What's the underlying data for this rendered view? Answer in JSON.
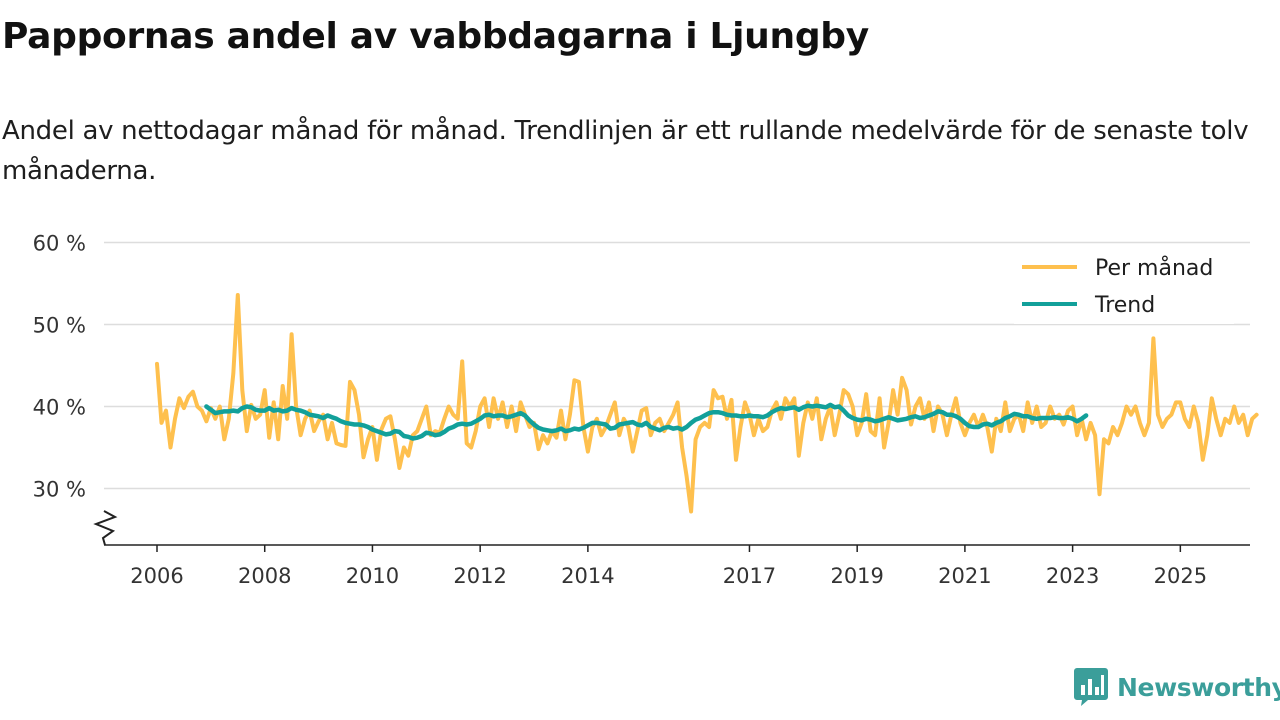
{
  "title": "Pappornas andel av vabbdagarna i Ljungby",
  "subtitle": "Andel av nettodagar månad för månad. Trendlinjen är ett rullande medelvärde för de senaste tolv månaderna.",
  "brand": {
    "name": "Newsworthy",
    "icon": "newsworthy-chart-icon"
  },
  "colors": {
    "monthly": "#fec04e",
    "trend": "#12a09a",
    "grid": "#dddddd",
    "axis": "#222222"
  },
  "chart_data": {
    "type": "line",
    "title": "Pappornas andel av vabbdagarna i Ljungby",
    "xlabel": "",
    "ylabel": "",
    "ylim": [
      23,
      60
    ],
    "y_ticks": [
      30,
      40,
      50,
      60
    ],
    "y_tick_labels": [
      "30 %",
      "40 %",
      "50 %",
      "60 %"
    ],
    "y_axis_broken": true,
    "x_ticks": [
      2006,
      2008,
      2010,
      2012,
      2014,
      2017,
      2019,
      2021,
      2023,
      2025
    ],
    "x_tick_labels": [
      "2006",
      "2008",
      "2010",
      "2012",
      "2014",
      "2017",
      "2019",
      "2021",
      "2023",
      "2025"
    ],
    "x_range_years": [
      2006,
      2025.33
    ],
    "legend": {
      "position": "top-right",
      "entries": [
        "Per månad",
        "Trend"
      ]
    },
    "series": [
      {
        "name": "Per månad",
        "start": "2006-01",
        "values": [
          45.2,
          38.0,
          39.5,
          35.0,
          38.5,
          41.0,
          39.8,
          41.2,
          41.8,
          40.0,
          39.5,
          38.2,
          39.8,
          38.5,
          40.0,
          36.0,
          38.5,
          44.0,
          53.6,
          42.0,
          37.0,
          40.2,
          38.5,
          39.0,
          42.0,
          36.2,
          40.5,
          36.0,
          42.5,
          38.5,
          48.8,
          40.0,
          36.5,
          38.5,
          39.5,
          37.0,
          38.2,
          39.0,
          36.0,
          38.0,
          35.5,
          35.3,
          35.2,
          43.0,
          42.0,
          39.0,
          33.8,
          36.0,
          37.5,
          33.5,
          37.2,
          38.5,
          38.8,
          36.0,
          32.5,
          35.0,
          34.0,
          36.5,
          37.0,
          38.5,
          40.0,
          36.5,
          37.0,
          36.8,
          38.5,
          40.0,
          39.0,
          38.5,
          45.5,
          35.5,
          35.0,
          37.0,
          40.0,
          41.0,
          37.5,
          41.0,
          38.5,
          40.5,
          37.5,
          40.0,
          37.0,
          40.5,
          39.0,
          37.5,
          38.0,
          34.8,
          36.5,
          35.5,
          37.0,
          36.2,
          39.5,
          36.0,
          39.0,
          43.2,
          43.0,
          37.5,
          34.5,
          37.5,
          38.5,
          36.5,
          37.5,
          39.0,
          40.5,
          36.5,
          38.5,
          37.5,
          34.5,
          37.0,
          39.5,
          39.8,
          36.5,
          38.0,
          38.5,
          37.0,
          38.0,
          39.0,
          40.5,
          35.0,
          31.5,
          27.2,
          36.0,
          37.5,
          38.0,
          37.5,
          42.0,
          41.0,
          41.2,
          38.5,
          40.8,
          33.5,
          37.5,
          40.5,
          39.0,
          36.5,
          38.5,
          37.0,
          37.5,
          39.5,
          40.5,
          38.5,
          41.0,
          40.0,
          41.0,
          34.0,
          38.0,
          40.5,
          38.5,
          41.0,
          36.0,
          38.5,
          40.0,
          36.5,
          39.0,
          42.0,
          41.5,
          40.0,
          36.5,
          38.0,
          41.5,
          37.0,
          36.5,
          41.0,
          35.0,
          38.0,
          42.0,
          39.0,
          43.5,
          42.0,
          37.8,
          40.0,
          41.0,
          38.5,
          40.5,
          37.0,
          40.0,
          39.0,
          36.5,
          39.0,
          41.0,
          38.0,
          36.5,
          38.0,
          39.0,
          37.5,
          39.0,
          37.5,
          34.5,
          38.5,
          37.0,
          40.5,
          37.0,
          38.5,
          39.0,
          37.0,
          40.5,
          38.0,
          40.0,
          37.5,
          38.0,
          40.0,
          38.5,
          39.0,
          37.8,
          39.5,
          40.0,
          36.5,
          38.5,
          36.0,
          38.0,
          36.5,
          29.3,
          36.0,
          35.5,
          37.5,
          36.5,
          38.0,
          40.0,
          39.0,
          40.0,
          38.0,
          36.5,
          38.0,
          48.3,
          39.0,
          37.5,
          38.5,
          39.0,
          40.5,
          40.5,
          38.5,
          37.5,
          40.0,
          38.0,
          33.5,
          36.5,
          41.0,
          38.5,
          36.5,
          38.5,
          38.0,
          40.0,
          38.0,
          39.0,
          36.5,
          38.5,
          39.0
        ]
      },
      {
        "name": "Trend",
        "start": "2006-12",
        "values": [
          40.0,
          39.6,
          39.2,
          39.3,
          39.4,
          39.4,
          39.5,
          39.4,
          39.8,
          40.0,
          39.9,
          39.6,
          39.5,
          39.5,
          39.8,
          39.5,
          39.6,
          39.4,
          39.5,
          39.8,
          39.6,
          39.5,
          39.3,
          39.0,
          38.9,
          38.8,
          38.6,
          38.9,
          38.7,
          38.5,
          38.2,
          38.0,
          37.9,
          37.8,
          37.8,
          37.7,
          37.5,
          37.2,
          37.0,
          36.8,
          36.6,
          36.7,
          37.0,
          36.9,
          36.4,
          36.3,
          36.1,
          36.2,
          36.4,
          36.8,
          36.7,
          36.5,
          36.6,
          36.9,
          37.3,
          37.5,
          37.8,
          37.9,
          37.8,
          37.9,
          38.2,
          38.5,
          38.9,
          39.0,
          38.8,
          38.9,
          38.9,
          38.7,
          38.8,
          39.0,
          39.2,
          38.9,
          38.3,
          37.8,
          37.4,
          37.2,
          37.1,
          37.0,
          37.1,
          37.3,
          37.0,
          37.1,
          37.3,
          37.2,
          37.4,
          37.7,
          38.0,
          38.0,
          37.9,
          37.8,
          37.3,
          37.4,
          37.8,
          37.9,
          38.0,
          38.1,
          37.8,
          37.7,
          38.0,
          37.5,
          37.3,
          37.1,
          37.4,
          37.5,
          37.3,
          37.4,
          37.2,
          37.5,
          38.0,
          38.4,
          38.6,
          38.9,
          39.2,
          39.3,
          39.3,
          39.2,
          39.0,
          38.9,
          38.9,
          38.8,
          38.8,
          38.9,
          38.8,
          38.8,
          38.7,
          38.9,
          39.3,
          39.6,
          39.8,
          39.7,
          39.8,
          39.9,
          39.6,
          39.9,
          40.1,
          40.0,
          40.1,
          40.0,
          39.9,
          40.2,
          39.9,
          40.0,
          39.5,
          38.9,
          38.6,
          38.4,
          38.3,
          38.5,
          38.4,
          38.2,
          38.3,
          38.5,
          38.7,
          38.5,
          38.3,
          38.4,
          38.5,
          38.7,
          38.8,
          38.6,
          38.7,
          38.9,
          39.1,
          39.4,
          39.3,
          39.0,
          39.0,
          38.8,
          38.5,
          38.0,
          37.6,
          37.5,
          37.5,
          37.8,
          37.9,
          37.7,
          38.0,
          38.2,
          38.6,
          38.8,
          39.1,
          39.0,
          38.8,
          38.8,
          38.6,
          38.5,
          38.6,
          38.6,
          38.6,
          38.7,
          38.6,
          38.6,
          38.7,
          38.5,
          38.2,
          38.5,
          38.9
        ]
      }
    ]
  }
}
